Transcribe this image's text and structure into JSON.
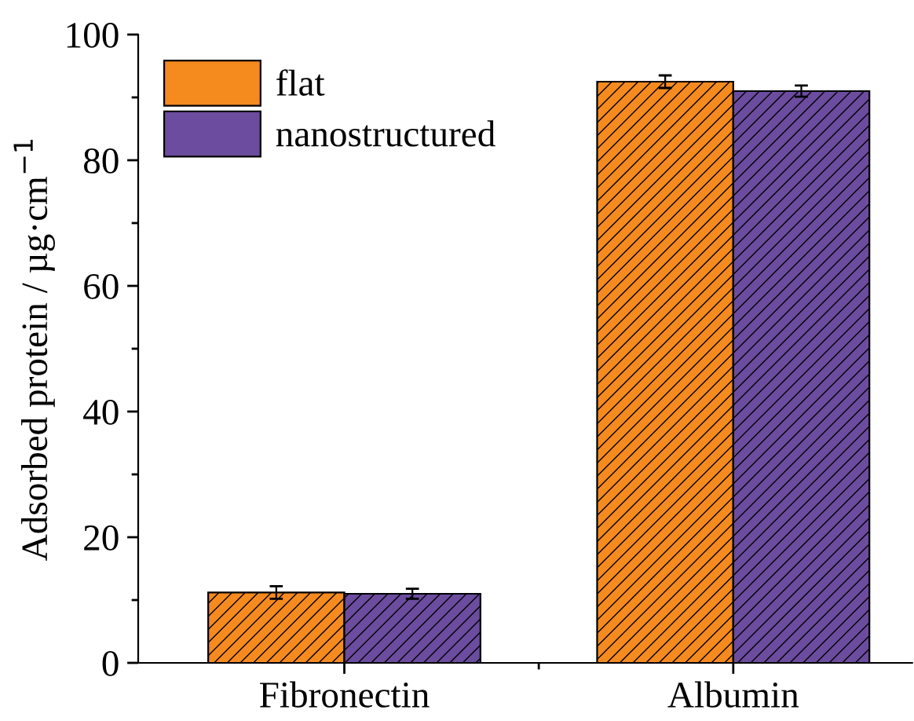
{
  "chart_data": {
    "type": "bar",
    "ylabel": "Adsorbed protein / µg·cm$^{−1}$",
    "categories": [
      "Fibronectin",
      "Albumin"
    ],
    "series": [
      {
        "name": "flat",
        "color": "#f58a1f",
        "values": [
          11.2,
          92.5
        ],
        "errors": [
          1.0,
          1.0
        ]
      },
      {
        "name": "nanostructured",
        "color": "#6b4c9e",
        "values": [
          11.0,
          91.0
        ],
        "errors": [
          0.8,
          0.9
        ]
      }
    ],
    "ylim": [
      0,
      100
    ],
    "yticks": [
      0,
      20,
      40,
      60,
      80,
      100
    ],
    "grid": false,
    "legend": "top left"
  }
}
